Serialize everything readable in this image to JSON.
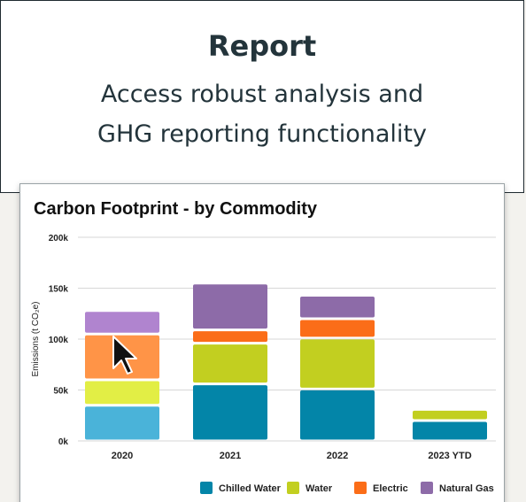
{
  "header": {
    "title": "Report",
    "subtitle_line1": "Access robust analysis and",
    "subtitle_line2": "GHG reporting functionality"
  },
  "colors": {
    "chilled_water_2020": "#4ab3d9",
    "water_2020": "#e2ee45",
    "electric_2020": "#ff9447",
    "natural_gas_2020": "#b084cf",
    "chilled_water": "#0385a8",
    "water": "#c2cf20",
    "electric": "#fb6d18",
    "natural_gas": "#8d6ba8",
    "grid": "#d7d7d7"
  },
  "chart_data": {
    "type": "bar",
    "stacked": true,
    "title": "Carbon Footprint - by Commodity",
    "xlabel": "",
    "ylabel": "Emissions (t CO₂e)",
    "ylim": [
      0,
      200000
    ],
    "y_ticks": [
      "0k",
      "50k",
      "100k",
      "150k",
      "200k"
    ],
    "categories": [
      "2020",
      "2021",
      "2022",
      "2023 YTD"
    ],
    "series": [
      {
        "name": "Chilled Water",
        "values": [
          35000,
          56000,
          51000,
          20000
        ]
      },
      {
        "name": "Water",
        "values": [
          25000,
          40000,
          50000,
          11000
        ]
      },
      {
        "name": "Electric",
        "values": [
          45000,
          13000,
          19000,
          0
        ]
      },
      {
        "name": "Natural Gas",
        "values": [
          23000,
          46000,
          23000,
          0
        ]
      }
    ],
    "legend_position": "bottom-right",
    "grid": true
  },
  "cursor": {
    "type": "arrow-pointer"
  }
}
